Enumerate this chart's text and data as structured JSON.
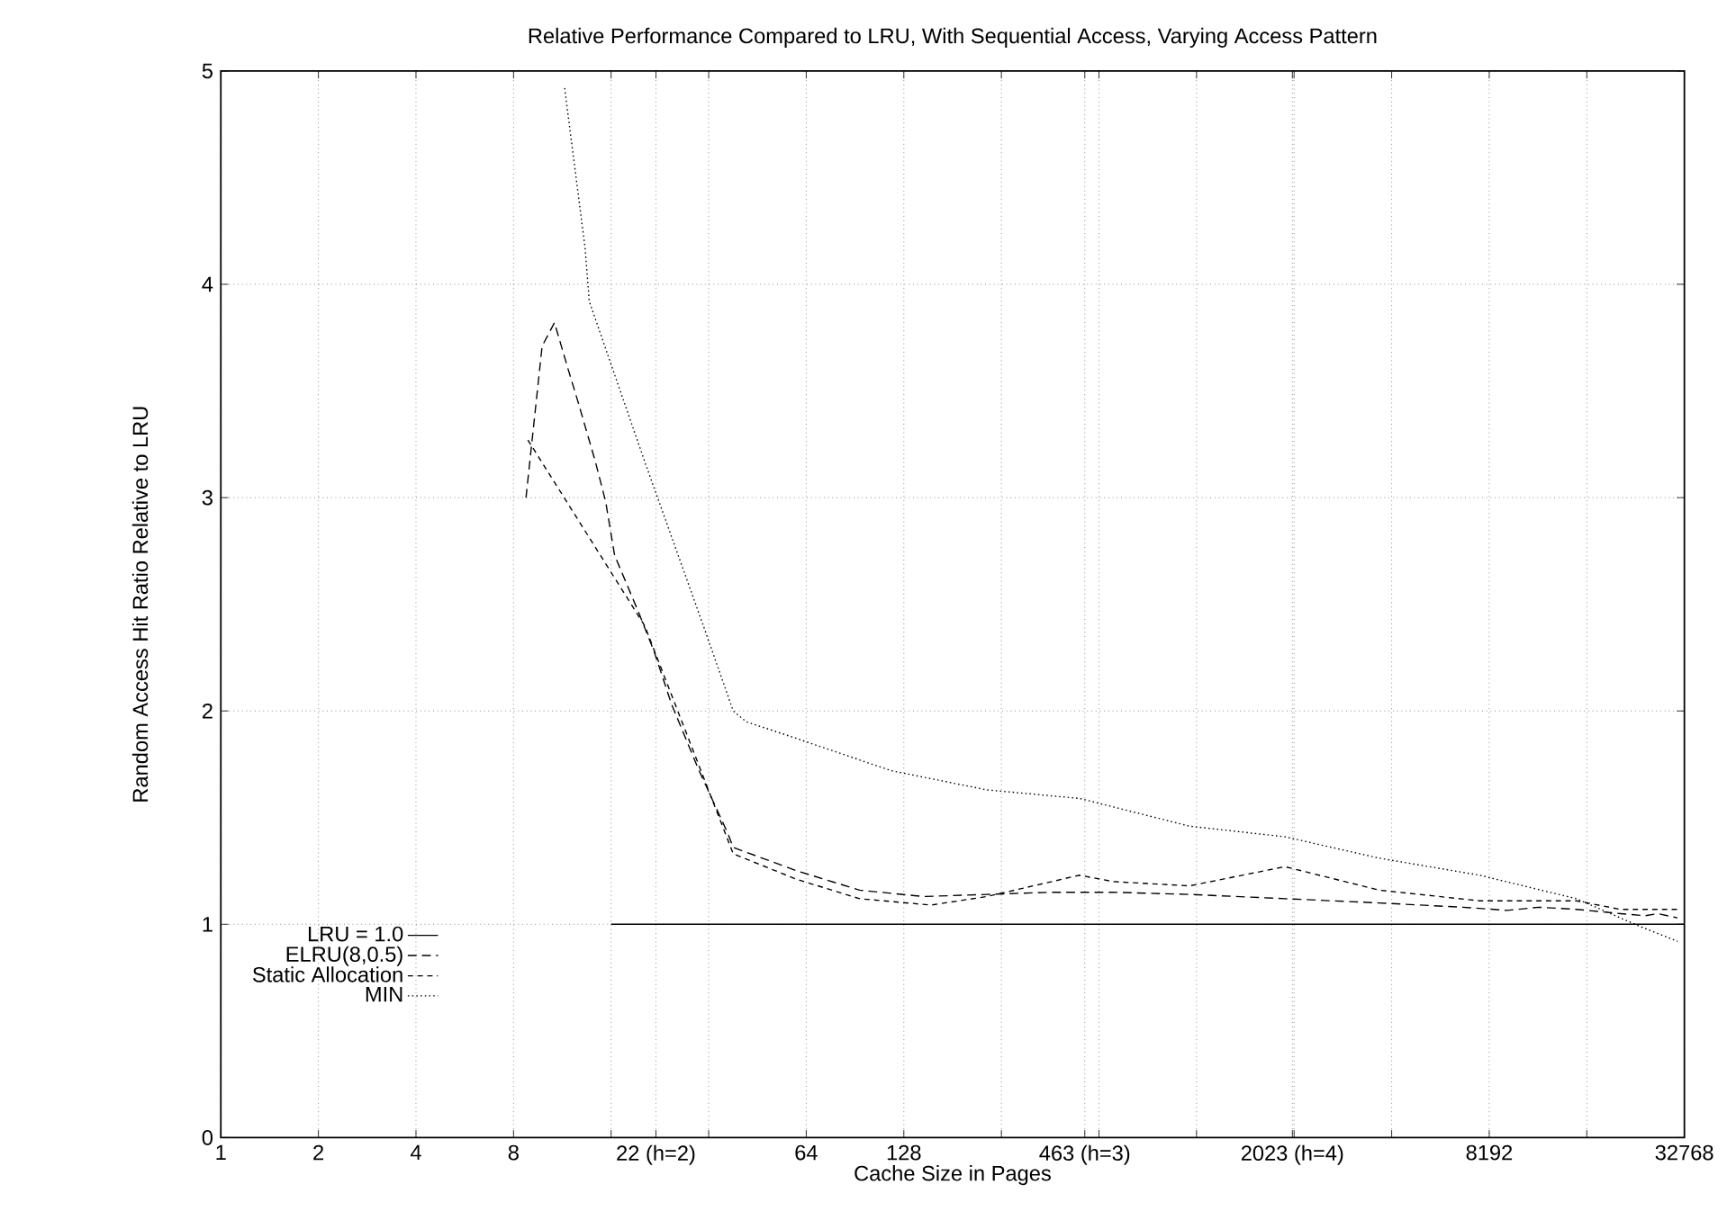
{
  "chart_data": {
    "type": "line",
    "title": "Relative Performance Compared to LRU, With Sequential Access, Varying Access Pattern",
    "xlabel": "Cache Size in Pages",
    "ylabel": "Random Access Hit Ratio Relative to LRU",
    "log": "x",
    "xlim": [
      1,
      32768
    ],
    "ylim": [
      0,
      5
    ],
    "xticks": [
      1,
      2,
      4,
      8,
      {
        "value": 16,
        "label": null
      },
      {
        "value": 22,
        "label": "22 (h=2)"
      },
      {
        "value": 32,
        "label": null
      },
      64,
      128,
      {
        "value": 256,
        "label": null
      },
      {
        "value": 463,
        "label": "463 (h=3)"
      },
      {
        "value": 512,
        "label": null
      },
      {
        "value": 1024,
        "label": null
      },
      {
        "value": 2023,
        "label": "2023 (h=4)"
      },
      {
        "value": 2048,
        "label": null
      },
      {
        "value": 4096,
        "label": null
      },
      8192,
      {
        "value": 16384,
        "label": null
      },
      32768
    ],
    "yticks": [
      0,
      1,
      2,
      3,
      4,
      5
    ],
    "grid": true,
    "legend": "bottom left",
    "marker": "none",
    "series": [
      {
        "name": "LRU = 1.0",
        "color": "#000000",
        "line_style": "solid",
        "x": [
          16,
          32768
        ],
        "values": [
          1,
          1
        ]
      },
      {
        "name": "ELRU(8,0.5)",
        "color": "#000000",
        "line_style": "dashed",
        "x": [
          8.74,
          9.8,
          10.7,
          11.8,
          12.7,
          14.3,
          15.4,
          16.4,
          19.6,
          21.7,
          24.6,
          29.7,
          36.8,
          38.1,
          60,
          93.5,
          147,
          231,
          364,
          566,
          974,
          1920,
          3750,
          6780,
          9300,
          11650,
          15200,
          20800,
          24800,
          27100,
          31200
        ],
        "values": [
          3.0,
          3.71,
          3.82,
          3.6,
          3.44,
          3.17,
          2.98,
          2.73,
          2.45,
          2.28,
          2.03,
          1.73,
          1.42,
          1.36,
          1.25,
          1.16,
          1.13,
          1.14,
          1.15,
          1.15,
          1.14,
          1.12,
          1.1,
          1.08,
          1.065,
          1.08,
          1.07,
          1.05,
          1.04,
          1.05,
          1.03
        ]
      },
      {
        "name": "Static Allocation",
        "color": "#000000",
        "line_style": "dashed",
        "x": [
          8.86,
          20.3,
          38.1,
          60,
          93.5,
          155,
          231,
          446,
          566,
          974,
          1920,
          3750,
          7650,
          15200,
          20800,
          31200
        ],
        "values": [
          3.27,
          2.4,
          1.33,
          1.21,
          1.12,
          1.09,
          1.13,
          1.23,
          1.2,
          1.18,
          1.27,
          1.16,
          1.11,
          1.11,
          1.07,
          1.07
        ]
      },
      {
        "name": "MIN",
        "color": "#000000",
        "line_style": "dotted",
        "x": [
          11.5,
          13.3,
          13.7,
          20.3,
          30.8,
          38.1,
          41.7,
          60,
          117,
          231,
          446,
          974,
          1920,
          3750,
          7650,
          15200,
          23900,
          31200
        ],
        "values": [
          4.92,
          4.17,
          3.92,
          3.17,
          2.4,
          2.0,
          1.95,
          1.87,
          1.72,
          1.63,
          1.59,
          1.46,
          1.41,
          1.31,
          1.23,
          1.12,
          0.99,
          0.92
        ]
      }
    ]
  }
}
